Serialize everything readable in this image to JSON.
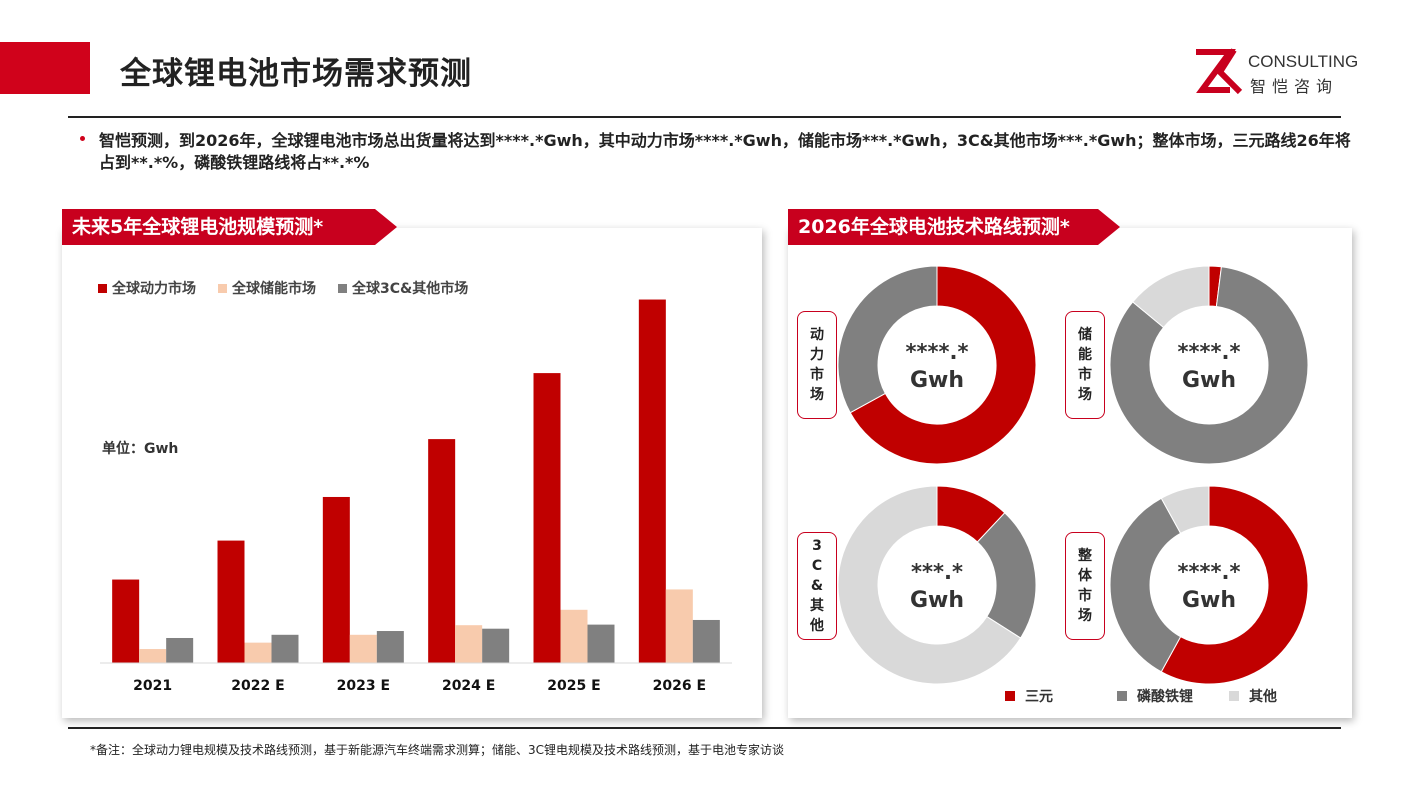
{
  "header": {
    "title": "全球锂电池市场需求预测",
    "logo_en": "CONSULTING",
    "logo_cn": "智恺咨询"
  },
  "summary": "智恺预测，到2026年，全球锂电池市场总出货量将达到****.*Gwh，其中动力市场****.*Gwh，储能市场***.*Gwh，3C&其他市场***.*Gwh；整体市场，三元路线26年将占到**.*%，磷酸铁锂路线将占**.*%",
  "left_panel": {
    "tab_title": "未来5年全球锂电池规模预测*",
    "unit": "单位：Gwh"
  },
  "right_panel": {
    "tab_title": "2026年全球电池技术路线预测*"
  },
  "footnote": "*备注：全球动力锂电规模及技术路线预测，基于新能源汽车终端需求测算；储能、3C锂电规模及技术路线预测，基于电池专家访谈",
  "colors": {
    "brand_red": "#c8001e",
    "series_power": "#c00000",
    "series_storage": "#f8cbad",
    "series_3c": "#808080",
    "route_other": "#d9d9d9"
  },
  "chart_data": [
    {
      "type": "bar",
      "categories": [
        "2021",
        "2022 E",
        "2023 E",
        "2024 E",
        "2025 E",
        "2026 E"
      ],
      "series": [
        {
          "name": "全球动力市场",
          "values": [
            287,
            421,
            571,
            770,
            997,
            1250
          ]
        },
        {
          "name": "全球储能市场",
          "values": [
            48,
            70,
            97,
            130,
            183,
            253
          ]
        },
        {
          "name": "全球3C&其他市场",
          "values": [
            86,
            97,
            110,
            118,
            132,
            148
          ]
        }
      ],
      "ylabel": "单位：Gwh",
      "ylim": [
        0,
        1300
      ],
      "grid": false,
      "legend": "top-left"
    },
    {
      "type": "pie",
      "donut": true,
      "segment_names": [
        "三元",
        "磷酸铁锂",
        "其他"
      ],
      "segment_colors": [
        "#c00000",
        "#808080",
        "#d9d9d9"
      ],
      "legend": "bottom",
      "charts": [
        {
          "label": "动力市场",
          "center_value": "****.*",
          "center_unit": "Gwh",
          "values": [
            67,
            33,
            0
          ]
        },
        {
          "label": "储能市场",
          "center_value": "****.*",
          "center_unit": "Gwh",
          "values": [
            2,
            84,
            14
          ]
        },
        {
          "label": "3C&其他",
          "center_value": "***.*",
          "center_unit": "Gwh",
          "values": [
            12,
            22,
            66
          ]
        },
        {
          "label": "整体市场",
          "center_value": "****.*",
          "center_unit": "Gwh",
          "values": [
            58,
            34,
            8
          ]
        }
      ]
    }
  ]
}
